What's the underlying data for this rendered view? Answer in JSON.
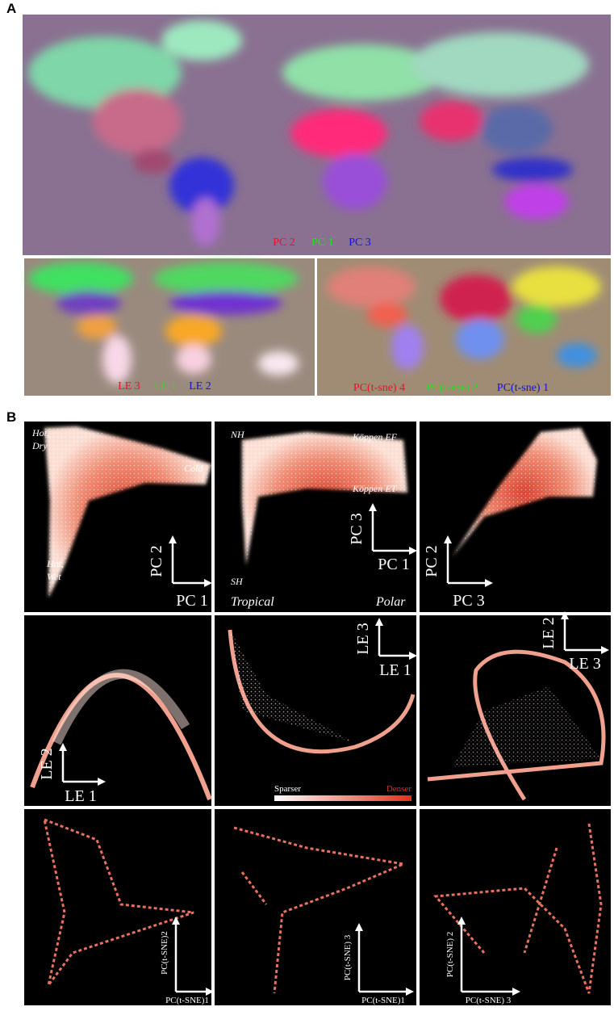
{
  "panel_labels": [
    "A",
    "B"
  ],
  "maps": [
    {
      "legend": [
        "PC 2",
        "PC 1",
        "PC 3"
      ]
    },
    {
      "legend": [
        "LE 3",
        "LE 1",
        "LE 2"
      ]
    },
    {
      "legend": [
        "PC(t-sne) 4",
        "PC(t-sne) 2",
        "PC(t-sne) 1"
      ]
    }
  ],
  "plots": [
    {
      "x_axis": "PC 1",
      "y_axis": "PC 2",
      "annotations": [
        "Hot,",
        "Dry",
        "Cold",
        "Hot,",
        "Wet"
      ]
    },
    {
      "x_axis": "PC 1",
      "y_axis": "PC 3",
      "annotations": [
        "NH",
        "Köppen EF",
        "Köppen ET",
        "SH",
        "Tropical",
        "Polar"
      ]
    },
    {
      "x_axis": "PC 3",
      "y_axis": "PC 2"
    },
    {
      "x_axis": "LE 1",
      "y_axis": "LE 2"
    },
    {
      "x_axis": "LE 1",
      "y_axis": "LE 3"
    },
    {
      "x_axis": "LE 3",
      "y_axis": "LE 2"
    },
    {
      "x_axis": "PC(t-SNE)1",
      "y_axis": "PC(t-SNE)2"
    },
    {
      "x_axis": "PC(t-SNE)1",
      "y_axis": "PC(t-SNE) 3"
    },
    {
      "x_axis": "PC(t-SNE) 3",
      "y_axis": "PC(t-SNE) 2"
    }
  ],
  "colorbar": {
    "low": "Sparser",
    "high": "Denser"
  }
}
